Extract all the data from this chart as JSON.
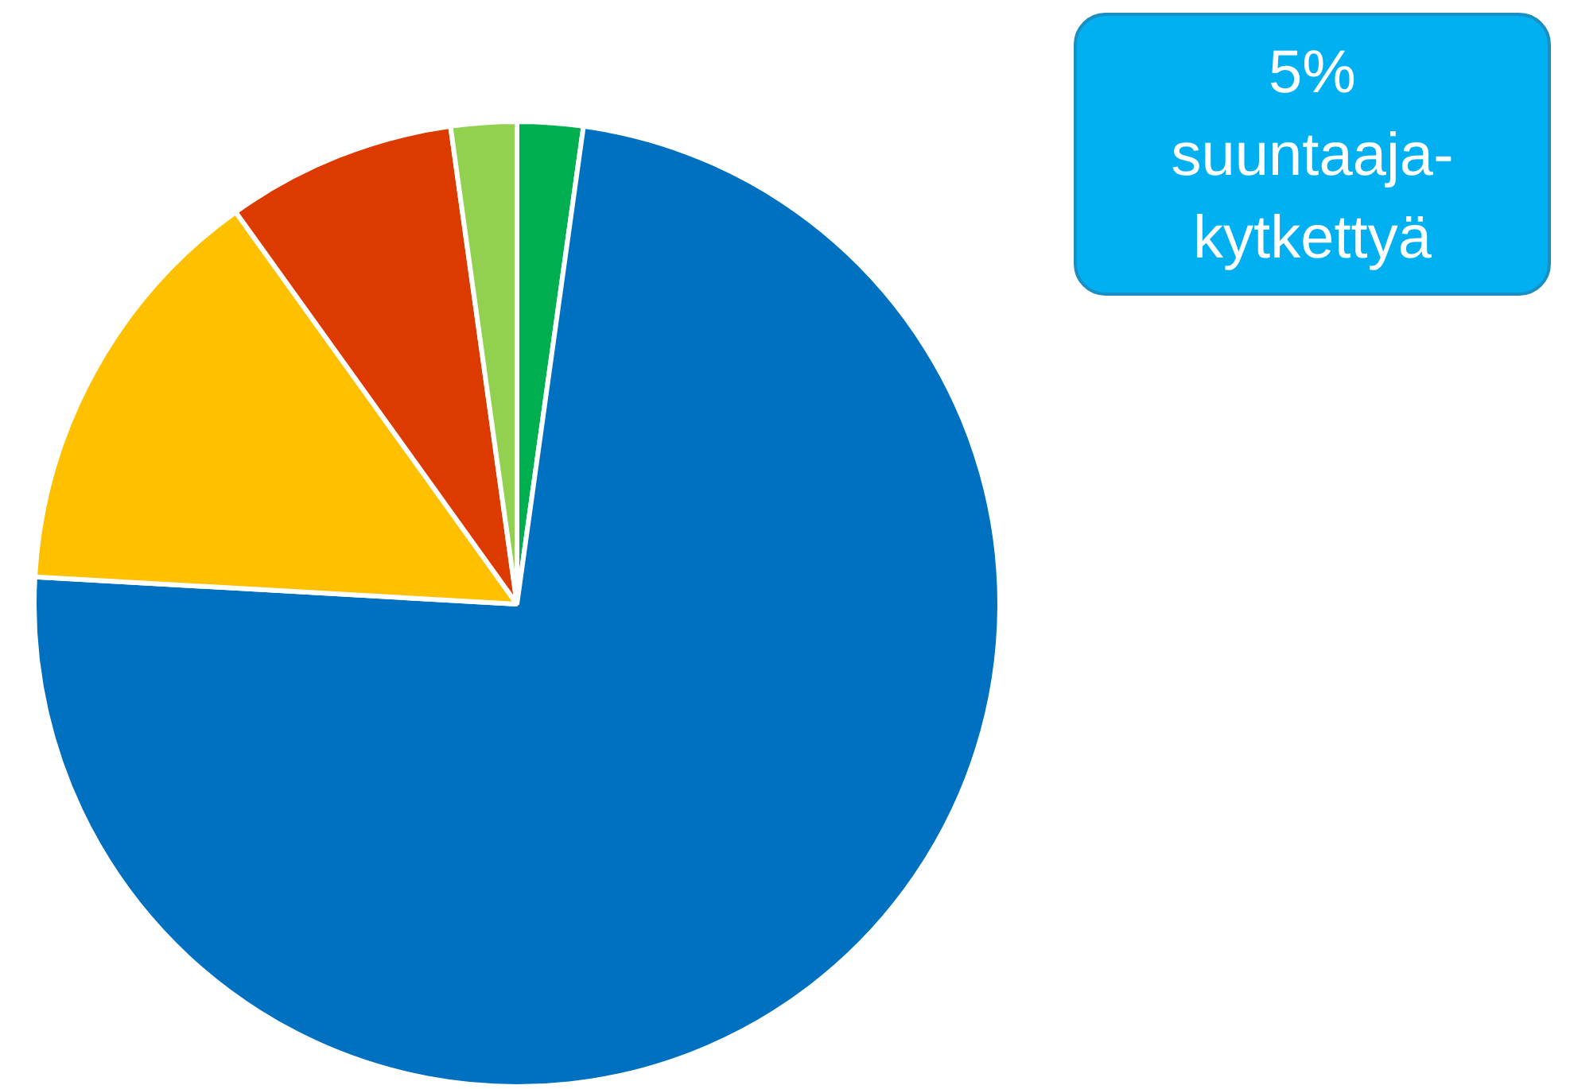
{
  "chart_data": {
    "type": "pie",
    "categories": [
      null,
      null,
      null,
      null,
      null
    ],
    "values": [
      2.2,
      73.7,
      14.2,
      7.7,
      2.2
    ],
    "colors": [
      "#00b050",
      "#0070c0",
      "#ffc000",
      "#dd3a00",
      "#92d050"
    ],
    "annotations": [
      "5%\nsuuntaaja-\nkytkettyä"
    ],
    "legend": false
  }
}
